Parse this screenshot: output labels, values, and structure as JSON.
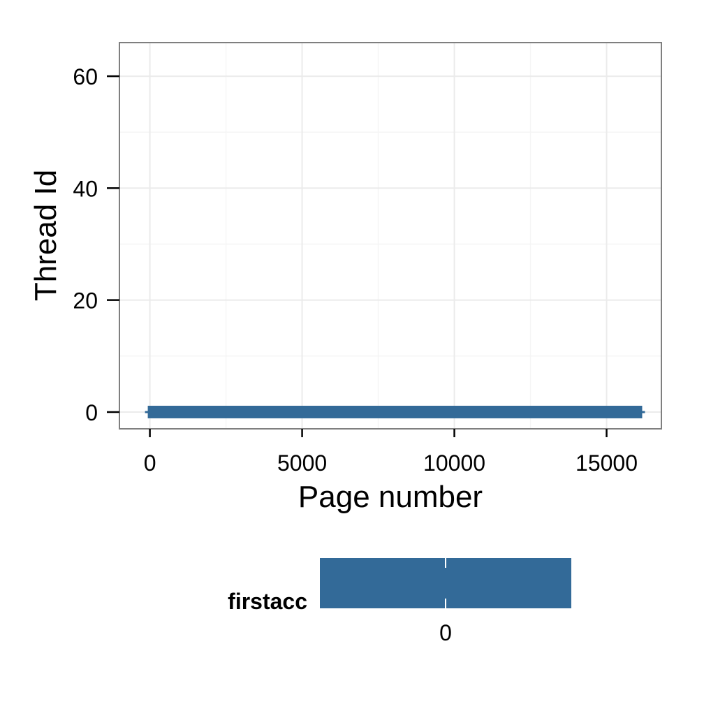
{
  "chart_data": {
    "type": "scatter",
    "xlabel": "Page number",
    "ylabel": "Thread Id",
    "xlim": [
      -1000,
      16800
    ],
    "ylim": [
      -3,
      66
    ],
    "x_ticks": [
      0,
      5000,
      10000,
      15000
    ],
    "x_tick_labels": [
      "0",
      "5000",
      "10000",
      "15000"
    ],
    "y_ticks": [
      0,
      20,
      40,
      60
    ],
    "y_tick_labels": [
      "0",
      "20",
      "40",
      "60"
    ],
    "grid": true,
    "series": [
      {
        "x_range": [
          0,
          16100
        ],
        "y": 0,
        "color": "#336a98",
        "note_points": "dense band of points at thread id 0 spanning pages 0 to ~16100"
      }
    ],
    "legend": {
      "title": "firstacc",
      "position": "bottom",
      "kind": "colorbar",
      "tick_labels": [
        "0"
      ],
      "color": "#336a98"
    }
  }
}
